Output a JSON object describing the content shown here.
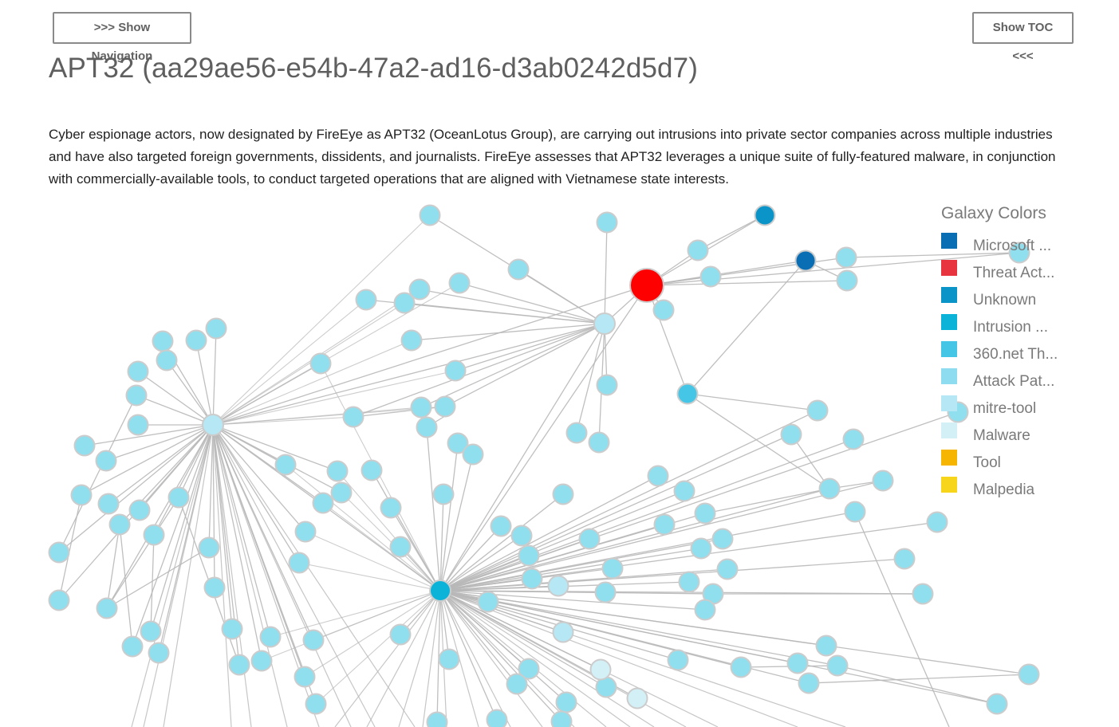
{
  "header": {
    "show_nav_label": ">>> Show Navigation",
    "show_toc_label": "Show TOC <<<"
  },
  "page": {
    "title": "APT32 (aa29ae56-e54b-47a2-ad16-d3ab0242d5d7)",
    "description": "Cyber espionage actors, now designated by FireEye as APT32 (OceanLotus Group), are carrying out intrusions into private sector companies across multiple industries and have also targeted foreign governments, dissidents, and journalists. FireEye assesses that APT32 leverages a unique suite of fully-featured malware, in conjunction with commercially-available tools, to conduct targeted operations that are aligned with Vietnamese state interests."
  },
  "legend": {
    "title": "Galaxy Colors",
    "items": [
      {
        "label": "Microsoft ...",
        "color": "#0a6eb4"
      },
      {
        "label": "Threat Act...",
        "color": "#e8343f"
      },
      {
        "label": "Unknown",
        "color": "#0a94c8"
      },
      {
        "label": "Intrusion ...",
        "color": "#0cb3d9"
      },
      {
        "label": "360.net Th...",
        "color": "#45c6e6"
      },
      {
        "label": "Attack Pat...",
        "color": "#8ddcef"
      },
      {
        "label": "mitre-tool",
        "color": "#b5e8f4"
      },
      {
        "label": "Malware",
        "color": "#d4f0f7"
      },
      {
        "label": "Tool",
        "color": "#f5b500"
      },
      {
        "label": "Malpedia",
        "color": "#f7d51a"
      }
    ]
  },
  "graph": {
    "colors": {
      "actor": "#ff0000",
      "microsoft": "#0a6eb4",
      "unknown": "#0a94c8",
      "intrusion": "#0cb3d9",
      "net360": "#45c6e6",
      "attack": "#8fdfef",
      "mitre": "#b5e8f4",
      "malware": "#d4f0f7",
      "edge": "#b8b8b8",
      "node_stroke": "#cccccc"
    }
  }
}
